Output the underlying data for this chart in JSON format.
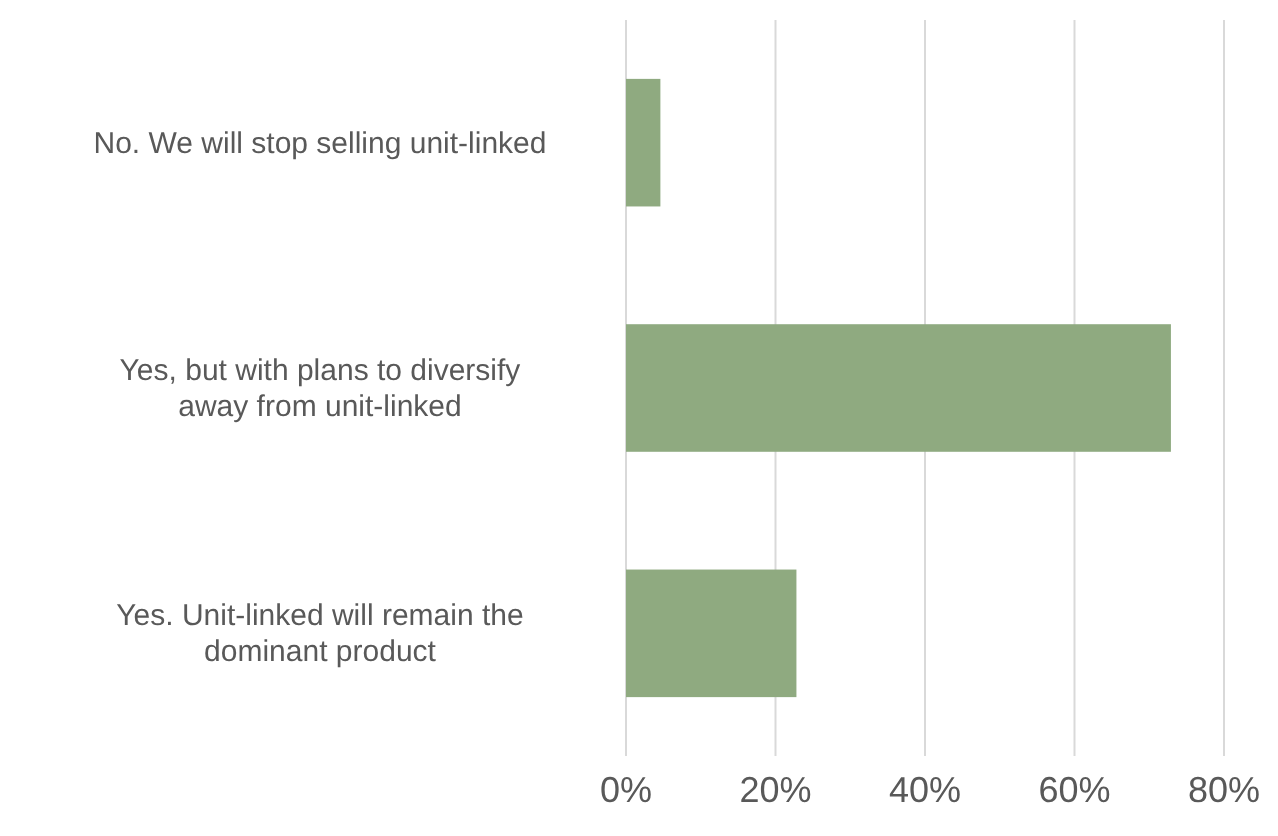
{
  "chart_data": {
    "type": "bar",
    "orientation": "horizontal",
    "categories": [
      "No. We will stop selling unit-linked",
      "Yes, but with plans to diversify away from unit-linked",
      "Yes. Unit-linked will remain the dominant product"
    ],
    "values": [
      4.6,
      72.9,
      22.8
    ],
    "color": "#8faa80",
    "xlim": [
      0,
      80
    ],
    "xticks": [
      {
        "value": 0,
        "label": "0%"
      },
      {
        "value": 20,
        "label": "20%"
      },
      {
        "value": 40,
        "label": "40%"
      },
      {
        "value": 60,
        "label": "60%"
      },
      {
        "value": 80,
        "label": "80%"
      }
    ],
    "grid": "x"
  }
}
